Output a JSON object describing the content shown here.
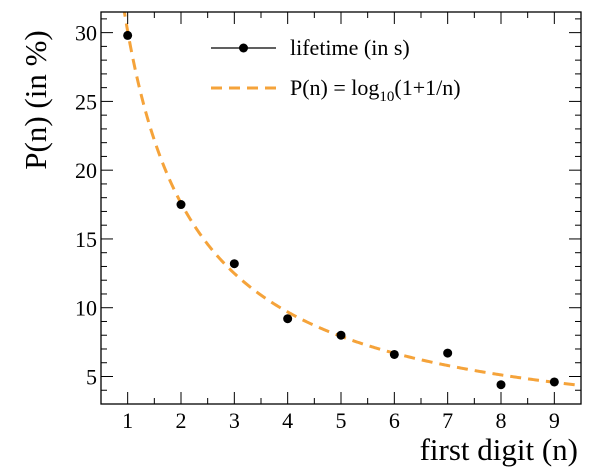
{
  "chart_data": {
    "type": "scatter",
    "xlabel": "first digit (n)",
    "ylabel": "P(n) (in %)",
    "xlim": [
      0.5,
      9.5
    ],
    "ylim": [
      3,
      31.5
    ],
    "x_ticks": [
      1,
      2,
      3,
      4,
      5,
      6,
      7,
      8,
      9
    ],
    "x_tick_labels": [
      "1",
      "2",
      "3",
      "4",
      "5",
      "6",
      "7",
      "8",
      "9"
    ],
    "y_ticks": [
      5,
      10,
      15,
      20,
      25,
      30
    ],
    "y_tick_labels": [
      "5",
      "10",
      "15",
      "20",
      "25",
      "30"
    ],
    "grid": false,
    "legend_position": "top-right",
    "series": [
      {
        "name": "lifetime (in s)",
        "kind": "points",
        "color": "#000000",
        "x": [
          1,
          2,
          3,
          4,
          5,
          6,
          7,
          8,
          9
        ],
        "y": [
          29.8,
          17.5,
          13.2,
          9.2,
          8.0,
          6.6,
          6.7,
          4.4,
          4.6
        ]
      },
      {
        "name": "P(n) = log10(1+1/n)",
        "legend_prefix": "P(n) = log",
        "legend_subscript": "10",
        "legend_suffix": "(1+1/n)",
        "kind": "curve",
        "formula": "100*log10(1+1/n)",
        "color": "#f5a33a",
        "dashed": true
      }
    ]
  }
}
